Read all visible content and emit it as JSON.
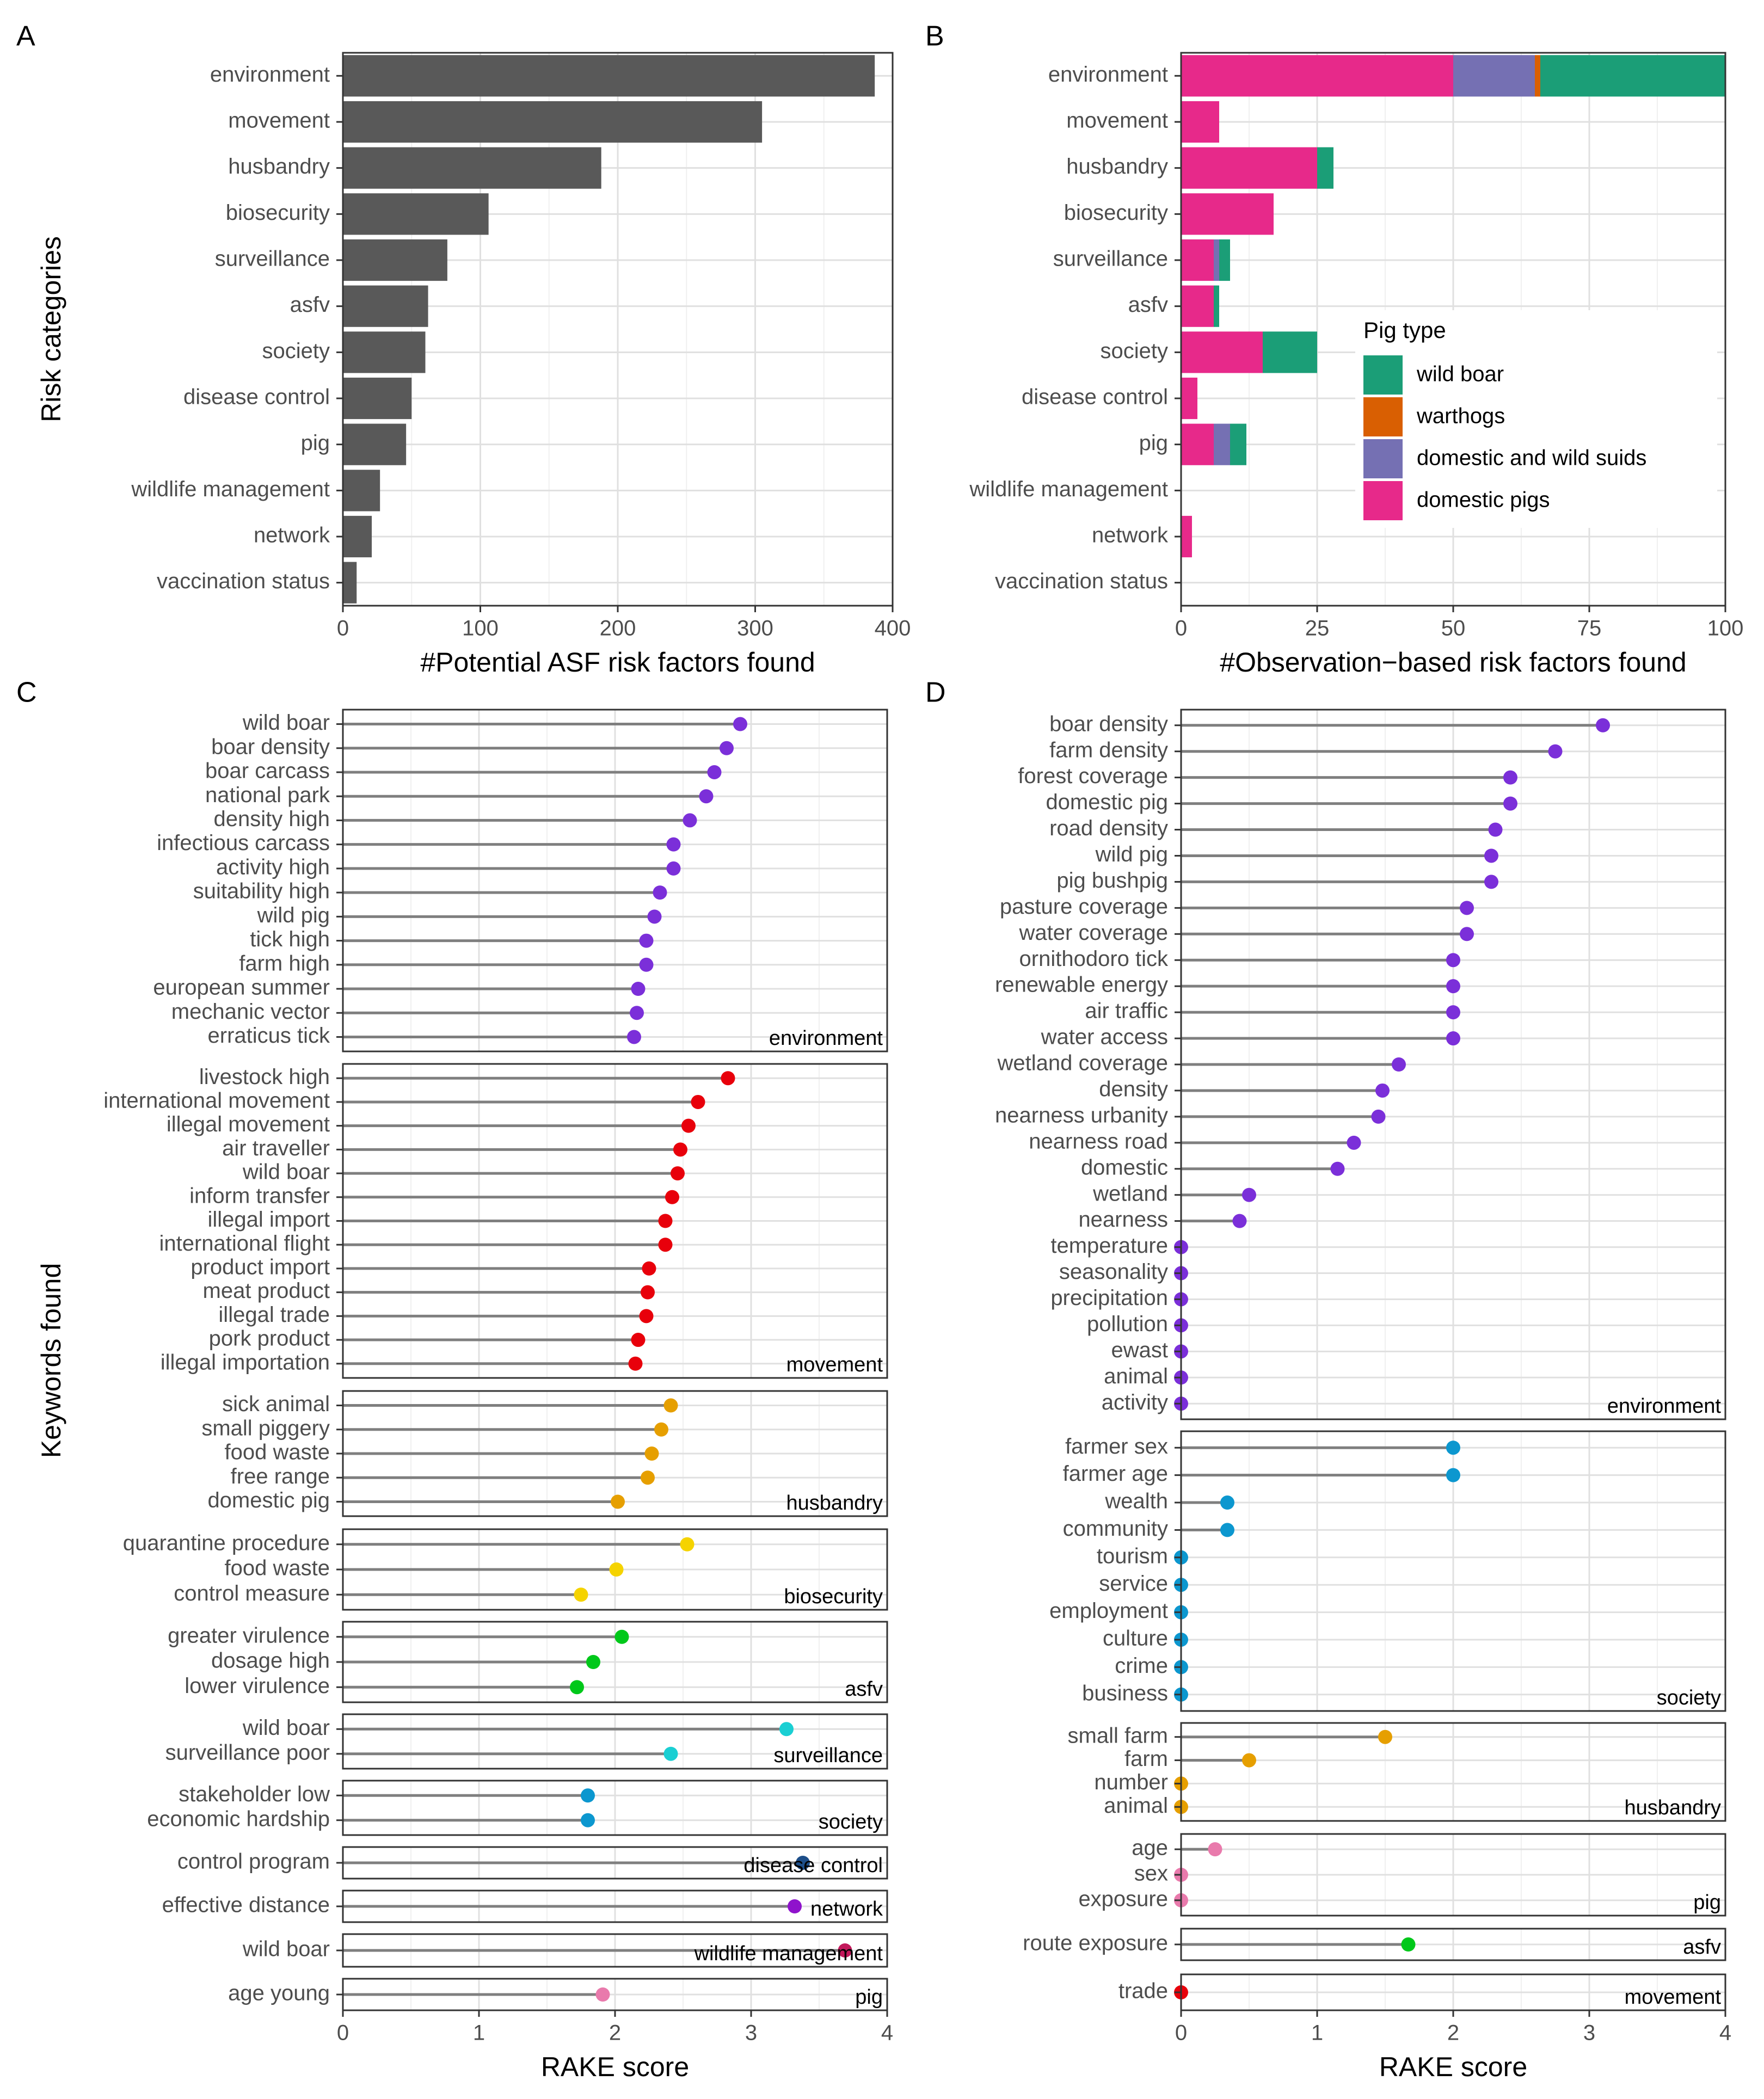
{
  "chart_data": [
    {
      "panel": "A",
      "type": "bar",
      "xlabel": "#Potential ASF risk factors found",
      "ylabel": "Risk categories",
      "xlim": [
        0,
        400
      ],
      "xticks": [
        0,
        100,
        200,
        300,
        400
      ],
      "bar_color": "#595959",
      "categories": [
        "environment",
        "movement",
        "husbandry",
        "biosecurity",
        "surveillance",
        "asfv",
        "society",
        "disease control",
        "pig",
        "wildlife management",
        "network",
        "vaccination status"
      ],
      "values": [
        387,
        305,
        188,
        106,
        76,
        62,
        60,
        50,
        46,
        27,
        21,
        10
      ]
    },
    {
      "panel": "B",
      "type": "bar",
      "stacked": true,
      "xlabel": "#Observation−based risk factors found",
      "xlim": [
        0,
        100
      ],
      "xticks": [
        0,
        25,
        50,
        75,
        100
      ],
      "categories": [
        "environment",
        "movement",
        "husbandry",
        "biosecurity",
        "surveillance",
        "asfv",
        "society",
        "disease control",
        "pig",
        "wildlife management",
        "network",
        "vaccination status"
      ],
      "legend": {
        "title": "Pig type",
        "position": "right-center"
      },
      "series": [
        {
          "name": "domestic pigs",
          "color": "#E7298A",
          "values": [
            50,
            7,
            25,
            17,
            6,
            6,
            15,
            3,
            6,
            0,
            2,
            0
          ]
        },
        {
          "name": "domestic and wild suids",
          "color": "#7570B3",
          "values": [
            15,
            0,
            0,
            0,
            1,
            0,
            0,
            0,
            3,
            0,
            0,
            0
          ]
        },
        {
          "name": "warthogs",
          "color": "#D95F02",
          "values": [
            1,
            0,
            0,
            0,
            0,
            0,
            0,
            0,
            0,
            0,
            0,
            0
          ]
        },
        {
          "name": "wild boar",
          "color": "#1B9E77",
          "values": [
            34,
            0,
            3,
            0,
            2,
            1,
            10,
            0,
            3,
            0,
            0,
            0
          ]
        }
      ],
      "legend_order": [
        "wild boar",
        "warthogs",
        "domestic and wild suids",
        "domestic pigs"
      ]
    },
    {
      "panel": "C",
      "type": "scatter",
      "subtype": "lollipop",
      "xlabel": "RAKE score",
      "ylabel": "Keywords found",
      "xlim": [
        0,
        4
      ],
      "xticks": [
        0,
        1,
        2,
        3,
        4
      ],
      "facets": [
        {
          "name": "environment",
          "color": "#7B2FD9",
          "items": [
            {
              "keyword": "wild boar",
              "score": 2.92
            },
            {
              "keyword": "boar density",
              "score": 2.82
            },
            {
              "keyword": "boar carcass",
              "score": 2.73
            },
            {
              "keyword": "national park",
              "score": 2.67
            },
            {
              "keyword": "density high",
              "score": 2.55
            },
            {
              "keyword": "infectious carcass",
              "score": 2.43
            },
            {
              "keyword": "activity high",
              "score": 2.43
            },
            {
              "keyword": "suitability high",
              "score": 2.33
            },
            {
              "keyword": "wild pig",
              "score": 2.29
            },
            {
              "keyword": "tick high",
              "score": 2.23
            },
            {
              "keyword": "farm high",
              "score": 2.23
            },
            {
              "keyword": "european summer",
              "score": 2.17
            },
            {
              "keyword": "mechanic vector",
              "score": 2.16
            },
            {
              "keyword": "erraticus tick",
              "score": 2.14
            }
          ]
        },
        {
          "name": "movement",
          "color": "#E8000B",
          "items": [
            {
              "keyword": "livestock high",
              "score": 2.83
            },
            {
              "keyword": "international movement",
              "score": 2.61
            },
            {
              "keyword": "illegal movement",
              "score": 2.54
            },
            {
              "keyword": "air traveller",
              "score": 2.48
            },
            {
              "keyword": "wild boar",
              "score": 2.46
            },
            {
              "keyword": "inform transfer",
              "score": 2.42
            },
            {
              "keyword": "illegal import",
              "score": 2.37
            },
            {
              "keyword": "international flight",
              "score": 2.37
            },
            {
              "keyword": "product import",
              "score": 2.25
            },
            {
              "keyword": "meat product",
              "score": 2.24
            },
            {
              "keyword": "illegal trade",
              "score": 2.23
            },
            {
              "keyword": "pork product",
              "score": 2.17
            },
            {
              "keyword": "illegal importation",
              "score": 2.15
            }
          ]
        },
        {
          "name": "husbandry",
          "color": "#E69F00",
          "items": [
            {
              "keyword": "sick animal",
              "score": 2.41
            },
            {
              "keyword": "small piggery",
              "score": 2.34
            },
            {
              "keyword": "food waste",
              "score": 2.27
            },
            {
              "keyword": "free range",
              "score": 2.24
            },
            {
              "keyword": "domestic pig",
              "score": 2.02
            }
          ]
        },
        {
          "name": "biosecurity",
          "color": "#F5D300",
          "items": [
            {
              "keyword": "quarantine procedure",
              "score": 2.53
            },
            {
              "keyword": "food waste",
              "score": 2.01
            },
            {
              "keyword": "control measure",
              "score": 1.75
            }
          ]
        },
        {
          "name": "asfv",
          "color": "#00C81A",
          "items": [
            {
              "keyword": "greater virulence",
              "score": 2.05
            },
            {
              "keyword": "dosage high",
              "score": 1.84
            },
            {
              "keyword": "lower virulence",
              "score": 1.72
            }
          ]
        },
        {
          "name": "surveillance",
          "color": "#1ACFD3",
          "items": [
            {
              "keyword": "wild boar",
              "score": 3.26
            },
            {
              "keyword": "surveillance poor",
              "score": 2.41
            }
          ]
        },
        {
          "name": "society",
          "color": "#0C97CF",
          "items": [
            {
              "keyword": "stakeholder low",
              "score": 1.8
            },
            {
              "keyword": "economic hardship",
              "score": 1.8
            }
          ]
        },
        {
          "name": "disease control",
          "color": "#1D4E89",
          "items": [
            {
              "keyword": "control program",
              "score": 3.38
            }
          ]
        },
        {
          "name": "network",
          "color": "#8F13CC",
          "items": [
            {
              "keyword": "effective distance",
              "score": 3.32
            }
          ]
        },
        {
          "name": "wildlife management",
          "color": "#C2185B",
          "items": [
            {
              "keyword": "wild boar",
              "score": 3.69
            }
          ]
        },
        {
          "name": "pig",
          "color": "#E97AAC",
          "items": [
            {
              "keyword": "age young",
              "score": 1.91
            }
          ]
        }
      ]
    },
    {
      "panel": "D",
      "type": "scatter",
      "subtype": "lollipop",
      "xlabel": "RAKE score",
      "xlim": [
        0,
        4
      ],
      "xticks": [
        0,
        1,
        2,
        3,
        4
      ],
      "facets": [
        {
          "name": "environment",
          "color": "#7B2FD9",
          "items": [
            {
              "keyword": "boar density",
              "score": 3.1
            },
            {
              "keyword": "farm density",
              "score": 2.75
            },
            {
              "keyword": "forest coverage",
              "score": 2.42
            },
            {
              "keyword": "domestic pig",
              "score": 2.42
            },
            {
              "keyword": "road density",
              "score": 2.31
            },
            {
              "keyword": "wild pig",
              "score": 2.28
            },
            {
              "keyword": "pig bushpig",
              "score": 2.28
            },
            {
              "keyword": "pasture coverage",
              "score": 2.1
            },
            {
              "keyword": "water coverage",
              "score": 2.1
            },
            {
              "keyword": "ornithodoro tick",
              "score": 2.0
            },
            {
              "keyword": "renewable energy",
              "score": 2.0
            },
            {
              "keyword": "air traffic",
              "score": 2.0
            },
            {
              "keyword": "water access",
              "score": 2.0
            },
            {
              "keyword": "wetland coverage",
              "score": 1.6
            },
            {
              "keyword": "density",
              "score": 1.48
            },
            {
              "keyword": "nearness urbanity",
              "score": 1.45
            },
            {
              "keyword": "nearness road",
              "score": 1.27
            },
            {
              "keyword": "domestic",
              "score": 1.15
            },
            {
              "keyword": "wetland",
              "score": 0.5
            },
            {
              "keyword": "nearness",
              "score": 0.43
            },
            {
              "keyword": "temperature",
              "score": 0
            },
            {
              "keyword": "seasonality",
              "score": 0
            },
            {
              "keyword": "precipitation",
              "score": 0
            },
            {
              "keyword": "pollution",
              "score": 0
            },
            {
              "keyword": "ewast",
              "score": 0
            },
            {
              "keyword": "animal",
              "score": 0
            },
            {
              "keyword": "activity",
              "score": 0
            }
          ]
        },
        {
          "name": "society",
          "color": "#0C97CF",
          "items": [
            {
              "keyword": "farmer sex",
              "score": 2.0
            },
            {
              "keyword": "farmer age",
              "score": 2.0
            },
            {
              "keyword": "wealth",
              "score": 0.34
            },
            {
              "keyword": "community",
              "score": 0.34
            },
            {
              "keyword": "tourism",
              "score": 0
            },
            {
              "keyword": "service",
              "score": 0
            },
            {
              "keyword": "employment",
              "score": 0
            },
            {
              "keyword": "culture",
              "score": 0
            },
            {
              "keyword": "crime",
              "score": 0
            },
            {
              "keyword": "business",
              "score": 0
            }
          ]
        },
        {
          "name": "husbandry",
          "color": "#E69F00",
          "items": [
            {
              "keyword": "small farm",
              "score": 1.5
            },
            {
              "keyword": "farm",
              "score": 0.5
            },
            {
              "keyword": "number",
              "score": 0
            },
            {
              "keyword": "animal",
              "score": 0
            }
          ]
        },
        {
          "name": "pig",
          "color": "#E97AAC",
          "items": [
            {
              "keyword": "age",
              "score": 0.25
            },
            {
              "keyword": "sex",
              "score": 0
            },
            {
              "keyword": "exposure",
              "score": 0
            }
          ]
        },
        {
          "name": "asfv",
          "color": "#00C81A",
          "items": [
            {
              "keyword": "route exposure",
              "score": 1.67
            }
          ]
        },
        {
          "name": "movement",
          "color": "#E8000B",
          "items": [
            {
              "keyword": "trade",
              "score": 0
            }
          ]
        }
      ]
    }
  ]
}
